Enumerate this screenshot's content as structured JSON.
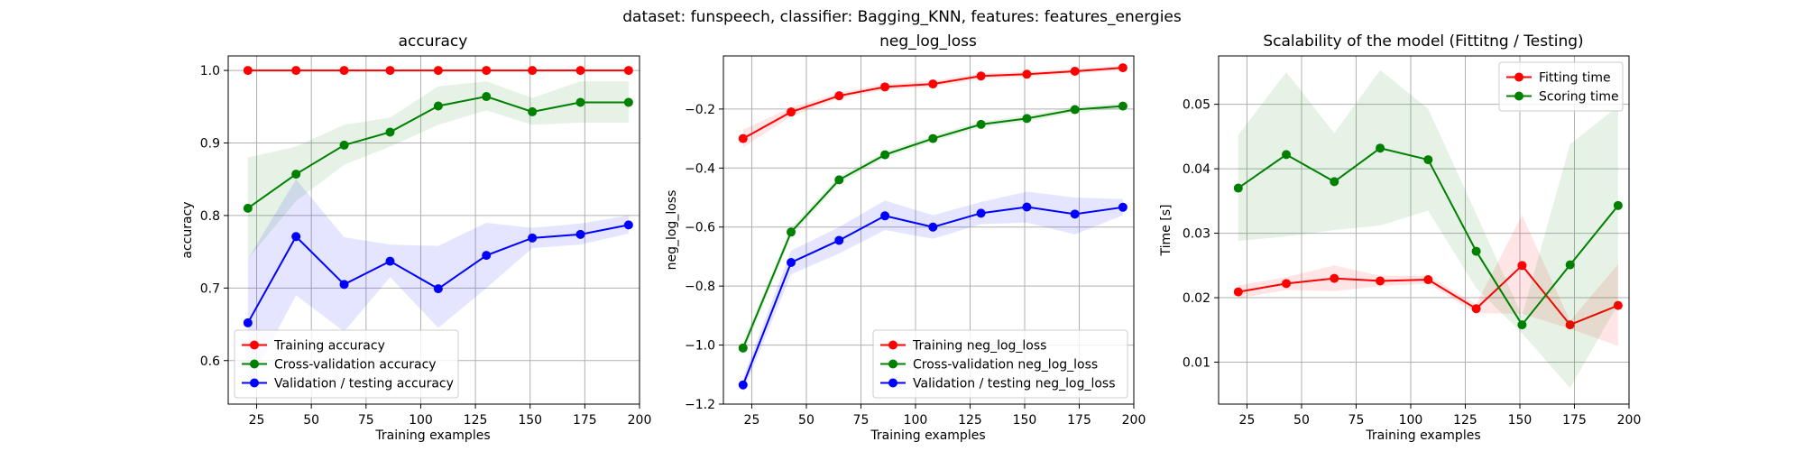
{
  "figure": {
    "suptitle": "dataset: funspeech, classifier: Bagging_KNN, features: features_energies"
  },
  "colors": {
    "red": "#ff0000",
    "green": "#008000",
    "blue": "#0000ff",
    "grid": "#b0b0b0"
  },
  "chart_data": [
    {
      "type": "line",
      "title": "accuracy",
      "xlabel": "Training examples",
      "ylabel": "accuracy",
      "xlim": [
        12,
        200
      ],
      "ylim": [
        0.54,
        1.02
      ],
      "xticks": [
        25,
        50,
        75,
        100,
        125,
        150,
        175,
        200
      ],
      "yticks": [
        0.6,
        0.7,
        0.8,
        0.9,
        1.0
      ],
      "ytick_labels": [
        "0.6",
        "0.7",
        "0.8",
        "0.9",
        "1.0"
      ],
      "grid": true,
      "legend_loc": "lower-left",
      "x": [
        21,
        43,
        65,
        86,
        108,
        130,
        151,
        173,
        195
      ],
      "series": [
        {
          "name": "Training accuracy",
          "color": "#ff0000",
          "values": [
            1.0,
            1.0,
            1.0,
            1.0,
            1.0,
            1.0,
            1.0,
            1.0,
            1.0
          ],
          "lower": [
            1.0,
            1.0,
            1.0,
            1.0,
            1.0,
            1.0,
            1.0,
            1.0,
            1.0
          ],
          "upper": [
            1.0,
            1.0,
            1.0,
            1.0,
            1.0,
            1.0,
            1.0,
            1.0,
            1.0
          ]
        },
        {
          "name": "Cross-validation accuracy",
          "color": "#008000",
          "values": [
            0.81,
            0.857,
            0.897,
            0.915,
            0.951,
            0.964,
            0.943,
            0.956,
            0.956
          ],
          "lower": [
            0.74,
            0.82,
            0.87,
            0.895,
            0.925,
            0.945,
            0.925,
            0.928,
            0.928
          ],
          "upper": [
            0.88,
            0.895,
            0.925,
            0.935,
            0.978,
            0.985,
            0.962,
            0.985,
            0.985
          ]
        },
        {
          "name": "Validation / testing accuracy",
          "color": "#0000ff",
          "values": [
            0.652,
            0.771,
            0.705,
            0.737,
            0.699,
            0.745,
            0.769,
            0.774,
            0.787
          ],
          "lower": [
            0.565,
            0.69,
            0.64,
            0.715,
            0.645,
            0.7,
            0.755,
            0.76,
            0.775
          ],
          "upper": [
            0.74,
            0.85,
            0.77,
            0.76,
            0.758,
            0.79,
            0.783,
            0.789,
            0.8
          ]
        }
      ]
    },
    {
      "type": "line",
      "title": "neg_log_loss",
      "xlabel": "Training examples",
      "ylabel": "neg_log_loss",
      "xlim": [
        12,
        200
      ],
      "ylim": [
        -1.2,
        -0.02
      ],
      "xticks": [
        25,
        50,
        75,
        100,
        125,
        150,
        175,
        200
      ],
      "yticks": [
        -1.2,
        -1.0,
        -0.8,
        -0.6,
        -0.4,
        -0.2
      ],
      "ytick_labels": [
        "−1.2",
        "−1.0",
        "−0.8",
        "−0.6",
        "−0.4",
        "−0.2"
      ],
      "grid": true,
      "legend_loc": "lower-right",
      "x": [
        21,
        43,
        65,
        86,
        108,
        130,
        151,
        173,
        195
      ],
      "series": [
        {
          "name": "Training neg_log_loss",
          "color": "#ff0000",
          "values": [
            -0.3,
            -0.21,
            -0.155,
            -0.125,
            -0.115,
            -0.088,
            -0.082,
            -0.072,
            -0.06
          ],
          "lower": [
            -0.33,
            -0.225,
            -0.165,
            -0.135,
            -0.125,
            -0.097,
            -0.09,
            -0.08,
            -0.068
          ],
          "upper": [
            -0.27,
            -0.195,
            -0.145,
            -0.115,
            -0.105,
            -0.079,
            -0.074,
            -0.064,
            -0.052
          ]
        },
        {
          "name": "Cross-validation neg_log_loss",
          "color": "#008000",
          "values": [
            -1.01,
            -0.617,
            -0.44,
            -0.355,
            -0.3,
            -0.252,
            -0.232,
            -0.202,
            -0.19
          ],
          "lower": [
            -1.03,
            -0.632,
            -0.452,
            -0.365,
            -0.31,
            -0.262,
            -0.242,
            -0.212,
            -0.2
          ],
          "upper": [
            -0.99,
            -0.602,
            -0.428,
            -0.345,
            -0.29,
            -0.242,
            -0.222,
            -0.192,
            -0.18
          ]
        },
        {
          "name": "Validation / testing neg_log_loss",
          "color": "#0000ff",
          "values": [
            -1.135,
            -0.72,
            -0.645,
            -0.562,
            -0.6,
            -0.553,
            -0.532,
            -0.556,
            -0.533
          ],
          "lower": [
            -1.16,
            -0.76,
            -0.69,
            -0.61,
            -0.64,
            -0.59,
            -0.585,
            -0.625,
            -0.56
          ],
          "upper": [
            -1.11,
            -0.68,
            -0.6,
            -0.51,
            -0.56,
            -0.515,
            -0.48,
            -0.5,
            -0.505
          ]
        }
      ]
    },
    {
      "type": "line",
      "title": "Scalability of the model (Fittitng / Testing)",
      "xlabel": "Training examples",
      "ylabel": "Time [s]",
      "xlim": [
        12,
        200
      ],
      "ylim": [
        0.0035,
        0.0575
      ],
      "xticks": [
        25,
        50,
        75,
        100,
        125,
        150,
        175,
        200
      ],
      "yticks": [
        0.01,
        0.02,
        0.03,
        0.04,
        0.05
      ],
      "ytick_labels": [
        "0.01",
        "0.02",
        "0.03",
        "0.04",
        "0.05"
      ],
      "grid": true,
      "legend_loc": "top-right",
      "x": [
        21,
        43,
        65,
        86,
        108,
        130,
        151,
        173,
        195
      ],
      "series": [
        {
          "name": "Fitting time",
          "color": "#ff0000",
          "values": [
            0.0209,
            0.0222,
            0.023,
            0.0226,
            0.0228,
            0.0183,
            0.025,
            0.0158,
            0.0188
          ],
          "lower": [
            0.0199,
            0.0212,
            0.021,
            0.0218,
            0.0222,
            0.0176,
            0.0175,
            0.0152,
            0.0125
          ],
          "upper": [
            0.0219,
            0.0232,
            0.025,
            0.0234,
            0.0234,
            0.019,
            0.0328,
            0.0164,
            0.0252
          ]
        },
        {
          "name": "Scoring time",
          "color": "#008000",
          "values": [
            0.037,
            0.0422,
            0.038,
            0.0432,
            0.0414,
            0.0272,
            0.0158,
            0.0251,
            0.0343
          ],
          "lower": [
            0.0288,
            0.0295,
            0.0305,
            0.0312,
            0.0335,
            0.0215,
            0.0145,
            0.006,
            0.019
          ],
          "upper": [
            0.0452,
            0.055,
            0.0455,
            0.0553,
            0.0493,
            0.033,
            0.0172,
            0.0438,
            0.0497
          ]
        }
      ]
    }
  ]
}
